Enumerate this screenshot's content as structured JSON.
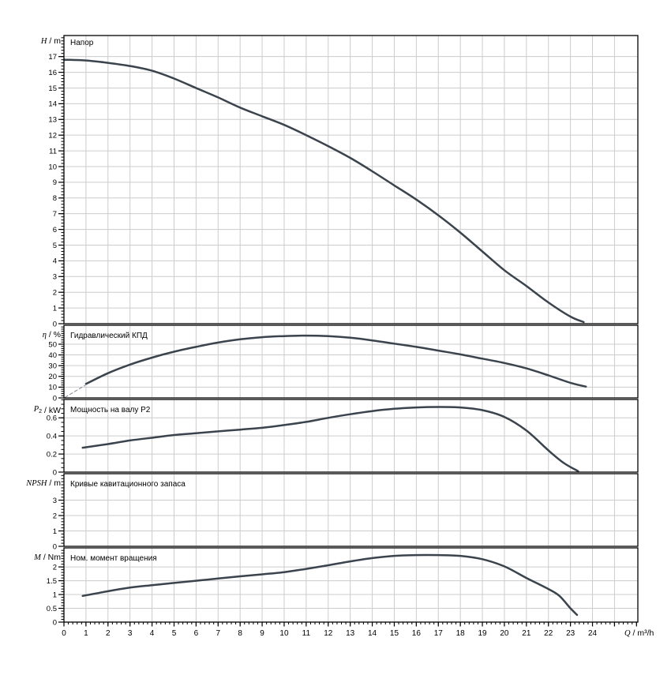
{
  "colors": {
    "curve": "#3b434d",
    "grid": "#cccccc",
    "axis": "#000000",
    "text": "#000000",
    "dash_line": "#8a9097",
    "background": "#ffffff"
  },
  "x_axis": {
    "label_segments": [
      {
        "text": "Q",
        "italic": true
      },
      {
        "text": " / m³/h",
        "italic": false
      }
    ],
    "range": [
      0,
      26.06
    ],
    "tick_labels": [
      "0",
      "1",
      "2",
      "3",
      "4",
      "5",
      "6",
      "7",
      "8",
      "9",
      "10",
      "11",
      "12",
      "13",
      "14",
      "15",
      "16",
      "17",
      "18",
      "19",
      "20",
      "21",
      "22",
      "23",
      "24"
    ],
    "major_step": 1,
    "minors_per_major": 5,
    "gridline_values": [
      1,
      2,
      3,
      4,
      5,
      6,
      7,
      8,
      9,
      10,
      11,
      12,
      13,
      14,
      15,
      16,
      17,
      18,
      19,
      20,
      21,
      22,
      23,
      24,
      25
    ]
  },
  "chart_data": [
    {
      "id": "head",
      "type": "line",
      "title": "Напор",
      "y_label_segments": [
        {
          "text": "H",
          "italic": true
        },
        {
          "text": " / m",
          "italic": false
        }
      ],
      "y_range": [
        0,
        18.34
      ],
      "y_tick_labels": [
        "0",
        "1",
        "2",
        "3",
        "4",
        "5",
        "6",
        "7",
        "8",
        "9",
        "10",
        "11",
        "12",
        "13",
        "14",
        "15",
        "16",
        "17"
      ],
      "y_major_step": 1,
      "y_minors_per_major": 5,
      "series": [
        {
          "name": "H-curve",
          "style": "solid",
          "points": [
            [
              0,
              16.8
            ],
            [
              1,
              16.75
            ],
            [
              2,
              16.6
            ],
            [
              3,
              16.4
            ],
            [
              4,
              16.1
            ],
            [
              5,
              15.6
            ],
            [
              6,
              15.0
            ],
            [
              7,
              14.4
            ],
            [
              8,
              13.75
            ],
            [
              9,
              13.2
            ],
            [
              10,
              12.65
            ],
            [
              11,
              12.0
            ],
            [
              12,
              11.3
            ],
            [
              13,
              10.55
            ],
            [
              14,
              9.7
            ],
            [
              15,
              8.8
            ],
            [
              16,
              7.9
            ],
            [
              17,
              6.9
            ],
            [
              18,
              5.8
            ],
            [
              19,
              4.6
            ],
            [
              20,
              3.4
            ],
            [
              21,
              2.4
            ],
            [
              22,
              1.35
            ],
            [
              23,
              0.45
            ],
            [
              23.6,
              0.1
            ]
          ]
        }
      ]
    },
    {
      "id": "efficiency",
      "type": "line",
      "title": "Гидравлический КПД",
      "y_label_segments": [
        {
          "text": "η",
          "italic": true
        },
        {
          "text": " / %",
          "italic": false
        }
      ],
      "y_range": [
        0,
        67.6
      ],
      "y_tick_labels": [
        "0",
        "10",
        "20",
        "30",
        "40",
        "50"
      ],
      "y_major_step": 10,
      "y_minors_per_major": 5,
      "series": [
        {
          "name": "eta-extrapolation",
          "style": "dashed",
          "points": [
            [
              0.05,
              0.5
            ],
            [
              0.95,
              11.5
            ]
          ]
        },
        {
          "name": "eta-curve",
          "style": "solid",
          "points": [
            [
              1,
              13
            ],
            [
              2,
              23
            ],
            [
              3,
              31
            ],
            [
              4,
              37.5
            ],
            [
              5,
              43
            ],
            [
              6,
              47.5
            ],
            [
              7,
              51.5
            ],
            [
              8,
              54.5
            ],
            [
              9,
              56.5
            ],
            [
              10,
              57.5
            ],
            [
              11,
              58
            ],
            [
              12,
              57.5
            ],
            [
              13,
              56
            ],
            [
              14,
              53.5
            ],
            [
              15,
              50.5
            ],
            [
              16,
              47.5
            ],
            [
              17,
              44
            ],
            [
              18,
              40.5
            ],
            [
              19,
              36.5
            ],
            [
              20,
              32.5
            ],
            [
              21,
              27.5
            ],
            [
              22,
              21
            ],
            [
              23,
              14
            ],
            [
              23.7,
              10.5
            ]
          ]
        }
      ]
    },
    {
      "id": "shaft-power",
      "type": "line",
      "title": "Мощность на валу P2",
      "y_label_segments": [
        {
          "text": "P",
          "italic": true
        },
        {
          "text": "2",
          "sub": true
        },
        {
          "text": " / kW",
          "italic": false
        }
      ],
      "y_range": [
        0,
        0.803
      ],
      "y_tick_labels": [
        "0",
        "0.2",
        "0.4",
        "0.6"
      ],
      "y_major_step": 0.2,
      "y_minors_per_major": 4,
      "series": [
        {
          "name": "p2-curve",
          "style": "solid",
          "points": [
            [
              0.85,
              0.27
            ],
            [
              2,
              0.31
            ],
            [
              3,
              0.35
            ],
            [
              4,
              0.38
            ],
            [
              5,
              0.41
            ],
            [
              6,
              0.43
            ],
            [
              7,
              0.45
            ],
            [
              8,
              0.47
            ],
            [
              9,
              0.49
            ],
            [
              10,
              0.52
            ],
            [
              11,
              0.555
            ],
            [
              12,
              0.6
            ],
            [
              13,
              0.64
            ],
            [
              14,
              0.675
            ],
            [
              15,
              0.7
            ],
            [
              16,
              0.715
            ],
            [
              17,
              0.72
            ],
            [
              18,
              0.715
            ],
            [
              19,
              0.685
            ],
            [
              20,
              0.61
            ],
            [
              21,
              0.46
            ],
            [
              22,
              0.24
            ],
            [
              22.7,
              0.1
            ],
            [
              23.35,
              0.01
            ]
          ]
        }
      ]
    },
    {
      "id": "npsh",
      "type": "line",
      "title": "Кривые кавитационного запаса",
      "y_label_segments": [
        {
          "text": "NPSH",
          "italic": true
        },
        {
          "text": " / m",
          "italic": false
        }
      ],
      "y_range": [
        0,
        4.72
      ],
      "y_tick_labels": [
        "0",
        "1",
        "2",
        "3"
      ],
      "y_major_step": 1,
      "y_minors_per_major": 5,
      "series": []
    },
    {
      "id": "torque",
      "type": "line",
      "title": "Ном. момент вращения",
      "y_label_segments": [
        {
          "text": "M",
          "italic": true
        },
        {
          "text": " / Nm",
          "italic": false
        }
      ],
      "y_range": [
        0,
        2.69
      ],
      "y_tick_labels": [
        "0",
        "0.5",
        "1",
        "1.5",
        "2"
      ],
      "y_major_step": 0.5,
      "y_minors_per_major": 5,
      "series": [
        {
          "name": "torque-curve",
          "style": "solid",
          "points": [
            [
              0.85,
              0.95
            ],
            [
              2,
              1.12
            ],
            [
              3,
              1.25
            ],
            [
              4,
              1.34
            ],
            [
              5,
              1.42
            ],
            [
              6,
              1.5
            ],
            [
              7,
              1.58
            ],
            [
              8,
              1.66
            ],
            [
              9,
              1.73
            ],
            [
              10,
              1.81
            ],
            [
              11,
              1.93
            ],
            [
              12,
              2.06
            ],
            [
              13,
              2.2
            ],
            [
              14,
              2.32
            ],
            [
              15,
              2.4
            ],
            [
              16,
              2.43
            ],
            [
              17,
              2.43
            ],
            [
              18,
              2.4
            ],
            [
              19,
              2.28
            ],
            [
              20,
              2.02
            ],
            [
              21,
              1.6
            ],
            [
              22,
              1.2
            ],
            [
              22.5,
              0.95
            ],
            [
              23,
              0.5
            ],
            [
              23.3,
              0.26
            ]
          ]
        }
      ]
    }
  ]
}
